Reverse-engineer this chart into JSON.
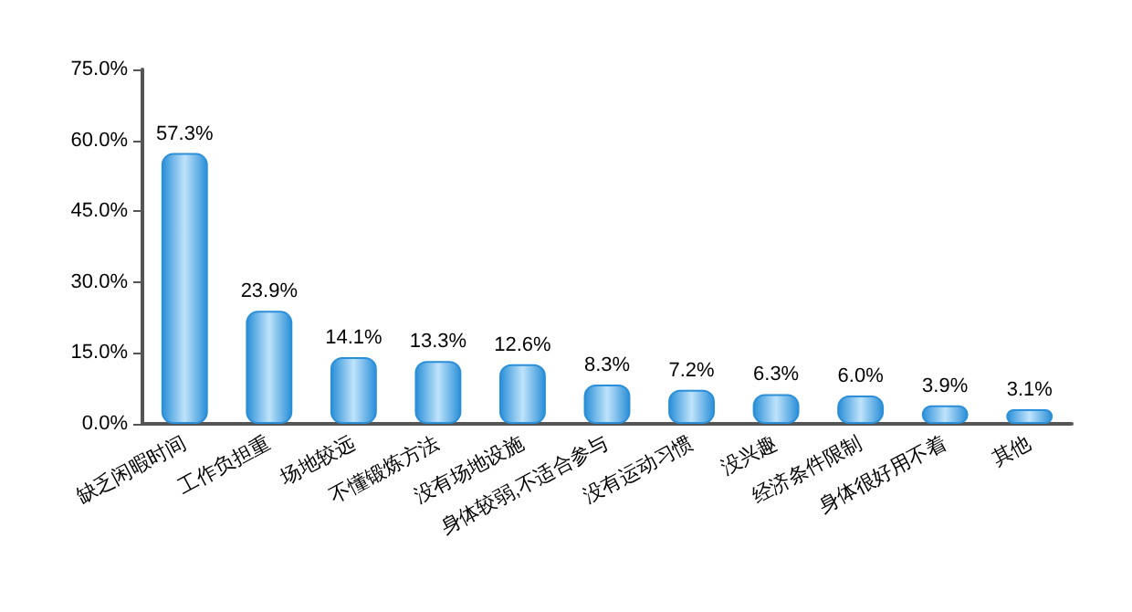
{
  "chart_data": {
    "type": "bar",
    "categories": [
      "缺乏闲暇时间",
      "工作负担重",
      "场地较远",
      "不懂锻炼方法",
      "没有场地设施",
      "身体较弱,不适合参与",
      "没有运动习惯",
      "没兴趣",
      "经济条件限制",
      "身体很好用不着",
      "其他"
    ],
    "values": [
      57.3,
      23.9,
      14.1,
      13.3,
      12.6,
      8.3,
      7.2,
      6.3,
      6.0,
      3.9,
      3.1
    ],
    "value_labels": [
      "57.3%",
      "23.9%",
      "14.1%",
      "13.3%",
      "12.6%",
      "8.3%",
      "7.2%",
      "6.3%",
      "6.0%",
      "3.9%",
      "3.1%"
    ],
    "color": "#2a8fd8",
    "ylim": [
      0,
      75
    ],
    "yticks": [
      {
        "value": 0,
        "label": "0.0%"
      },
      {
        "value": 15,
        "label": "15.0%"
      },
      {
        "value": 30,
        "label": "30.0%"
      },
      {
        "value": 45,
        "label": "45.0%"
      },
      {
        "value": 60,
        "label": "60.0%"
      },
      {
        "value": 75,
        "label": "75.0%"
      }
    ],
    "grid": false
  }
}
